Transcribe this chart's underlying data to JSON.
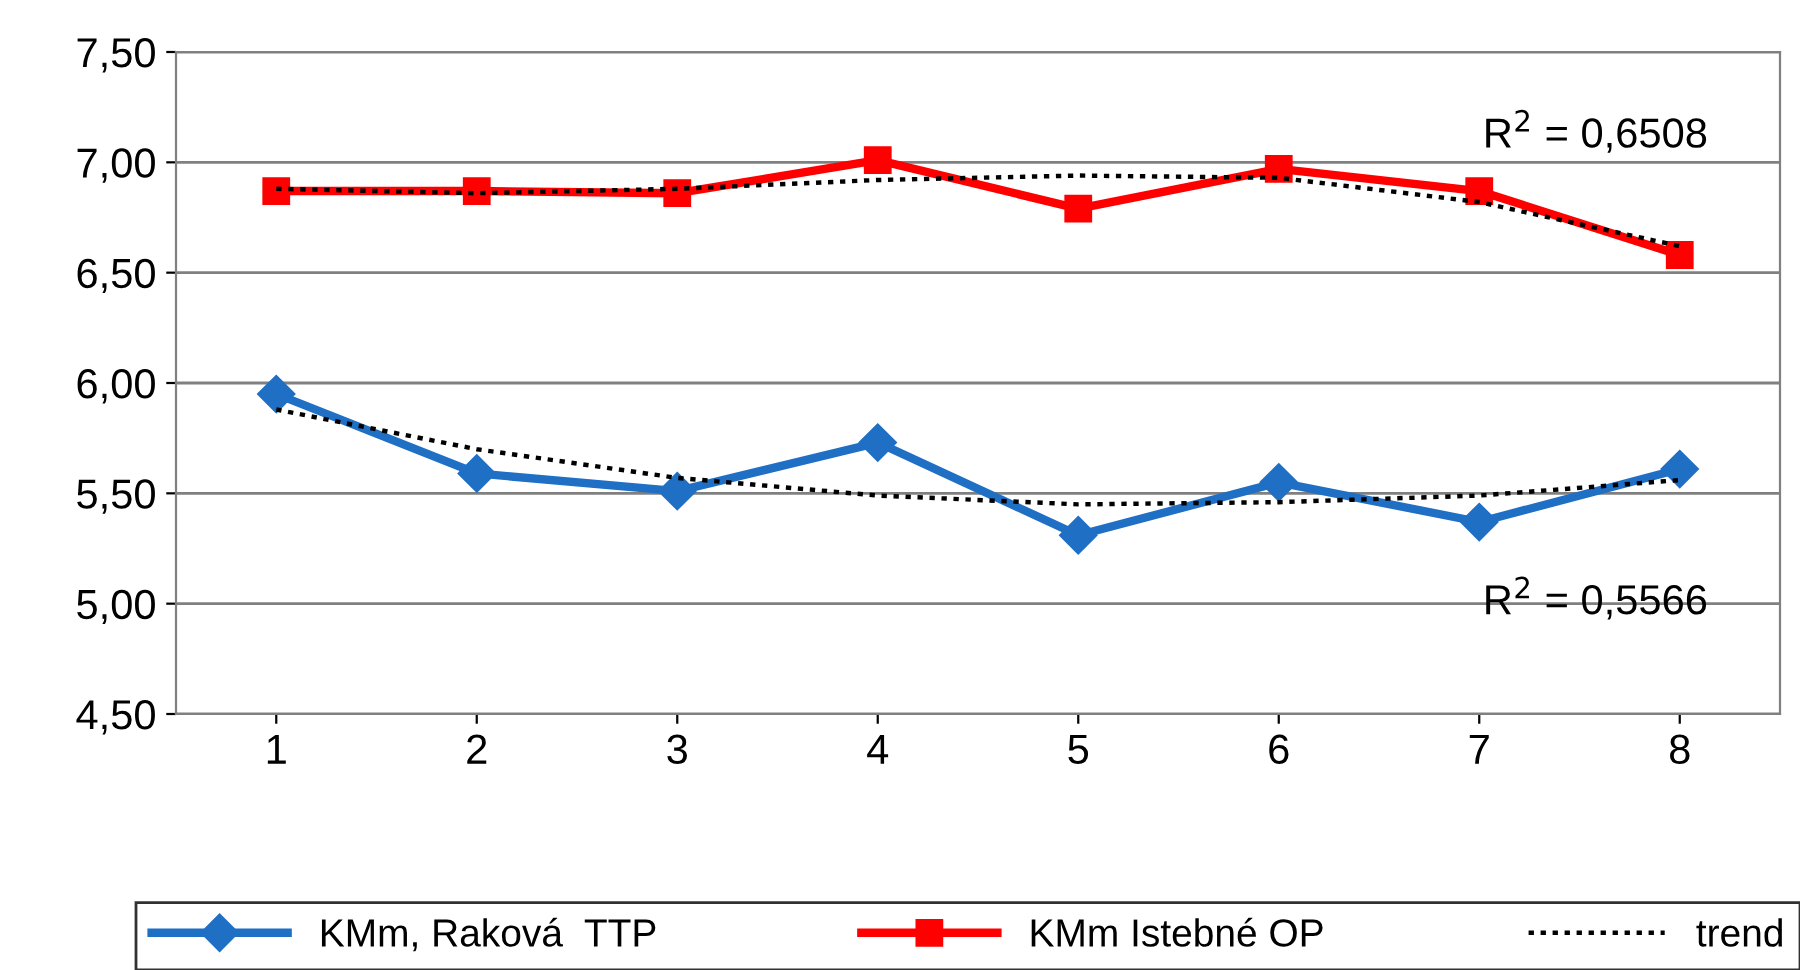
{
  "chart_data": {
    "type": "line",
    "categories": [
      "1",
      "2",
      "3",
      "4",
      "5",
      "6",
      "7",
      "8"
    ],
    "series": [
      {
        "name": "KMm, Raková  TTP",
        "color": "#1f6fc5",
        "marker": "diamond",
        "line_style": "solid",
        "values": [
          5.95,
          5.59,
          5.51,
          5.73,
          5.31,
          5.55,
          5.37,
          5.61
        ]
      },
      {
        "name": "KMm Istebné OP",
        "color": "#ff0000",
        "marker": "square",
        "line_style": "solid",
        "values": [
          6.87,
          6.87,
          6.86,
          7.01,
          6.79,
          6.97,
          6.87,
          6.58
        ]
      },
      {
        "name": "trend",
        "color": "#000000",
        "marker": "none",
        "line_style": "dotted",
        "values": [
          5.88,
          5.7,
          5.57,
          5.49,
          5.45,
          5.46,
          5.49,
          5.56
        ]
      },
      {
        "color": "#000000",
        "marker": "none",
        "line_style": "dotted",
        "values": [
          6.88,
          6.86,
          6.88,
          6.92,
          6.94,
          6.93,
          6.82,
          6.62
        ]
      }
    ],
    "ylim": [
      4.5,
      7.5
    ],
    "yticks": [
      {
        "value": 4.5,
        "label": "4,50"
      },
      {
        "value": 5.0,
        "label": "5,00"
      },
      {
        "value": 5.5,
        "label": "5,50"
      },
      {
        "value": 6.0,
        "label": "6,00"
      },
      {
        "value": 6.5,
        "label": "6,50"
      },
      {
        "value": 7.0,
        "label": "7,00"
      },
      {
        "value": 7.5,
        "label": "7,50"
      }
    ],
    "grid": "y",
    "legend": "bottom",
    "annotations": [
      "R$^{2}$ = 0,6508",
      "R$^{2}$ = 0,5566"
    ]
  }
}
